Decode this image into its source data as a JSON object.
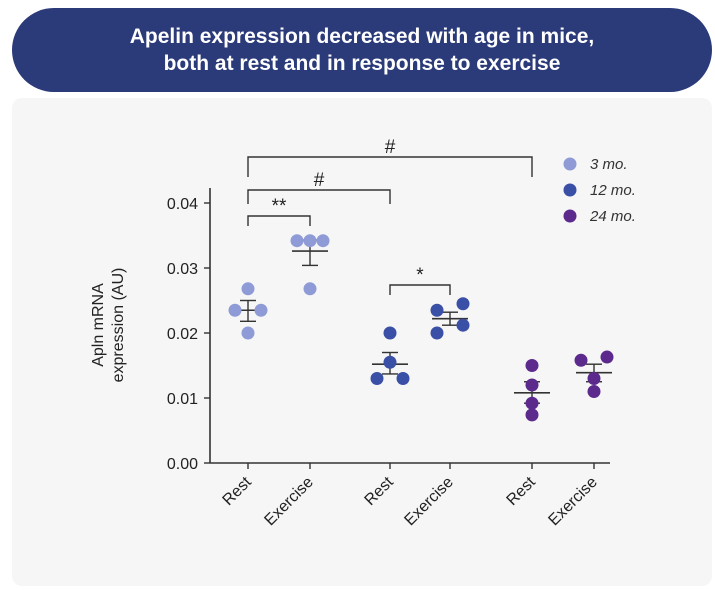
{
  "banner": {
    "title": "Apelin expression decreased with age in mice,\nboth at rest and in response to exercise"
  },
  "chart_data": {
    "type": "scatter",
    "ylabel_line1": "Apln mRNA",
    "ylabel_line2": "expression (AU)",
    "ylim": [
      0,
      0.04
    ],
    "yticks": [
      "0.00",
      "0.01",
      "0.02",
      "0.03",
      "0.04"
    ],
    "yticks_values": [
      0,
      0.01,
      0.02,
      0.03,
      0.04
    ],
    "categories": [
      "Rest",
      "Exercise",
      "Rest",
      "Exercise",
      "Rest",
      "Exercise"
    ],
    "legend_position": "top-right",
    "series": [
      {
        "name": "3 mo.",
        "color": "#8f9bd6",
        "groups": [
          {
            "category_index": 0,
            "points": [
              0.0268,
              0.0235,
              0.0235,
              0.02
            ],
            "mean": 0.0235,
            "sem_low": 0.0218,
            "sem_high": 0.025
          },
          {
            "category_index": 1,
            "points": [
              0.0342,
              0.0342,
              0.0342,
              0.0268
            ],
            "mean": 0.0326,
            "sem_low": 0.0304,
            "sem_high": 0.0343
          }
        ]
      },
      {
        "name": "12 mo.",
        "color": "#3a4fa6",
        "groups": [
          {
            "category_index": 2,
            "points": [
              0.02,
              0.0155,
              0.013,
              0.013
            ],
            "mean": 0.0152,
            "sem_low": 0.0137,
            "sem_high": 0.017
          },
          {
            "category_index": 3,
            "points": [
              0.0245,
              0.0235,
              0.0212,
              0.02
            ],
            "mean": 0.0222,
            "sem_low": 0.0212,
            "sem_high": 0.0232
          }
        ]
      },
      {
        "name": "24 mo.",
        "color": "#5c2a8c",
        "groups": [
          {
            "category_index": 4,
            "points": [
              0.015,
              0.012,
              0.0092,
              0.0074
            ],
            "mean": 0.0108,
            "sem_low": 0.0092,
            "sem_high": 0.0125
          },
          {
            "category_index": 5,
            "points": [
              0.0163,
              0.0158,
              0.013,
              0.011
            ],
            "mean": 0.0139,
            "sem_low": 0.0125,
            "sem_high": 0.0152
          }
        ]
      }
    ],
    "significance": [
      {
        "from": 0,
        "to": 4,
        "label": "#"
      },
      {
        "from": 0,
        "to": 2,
        "label": "#"
      },
      {
        "from": 0,
        "to": 1,
        "label": "**"
      },
      {
        "from": 2,
        "to": 3,
        "label": "*"
      }
    ]
  }
}
